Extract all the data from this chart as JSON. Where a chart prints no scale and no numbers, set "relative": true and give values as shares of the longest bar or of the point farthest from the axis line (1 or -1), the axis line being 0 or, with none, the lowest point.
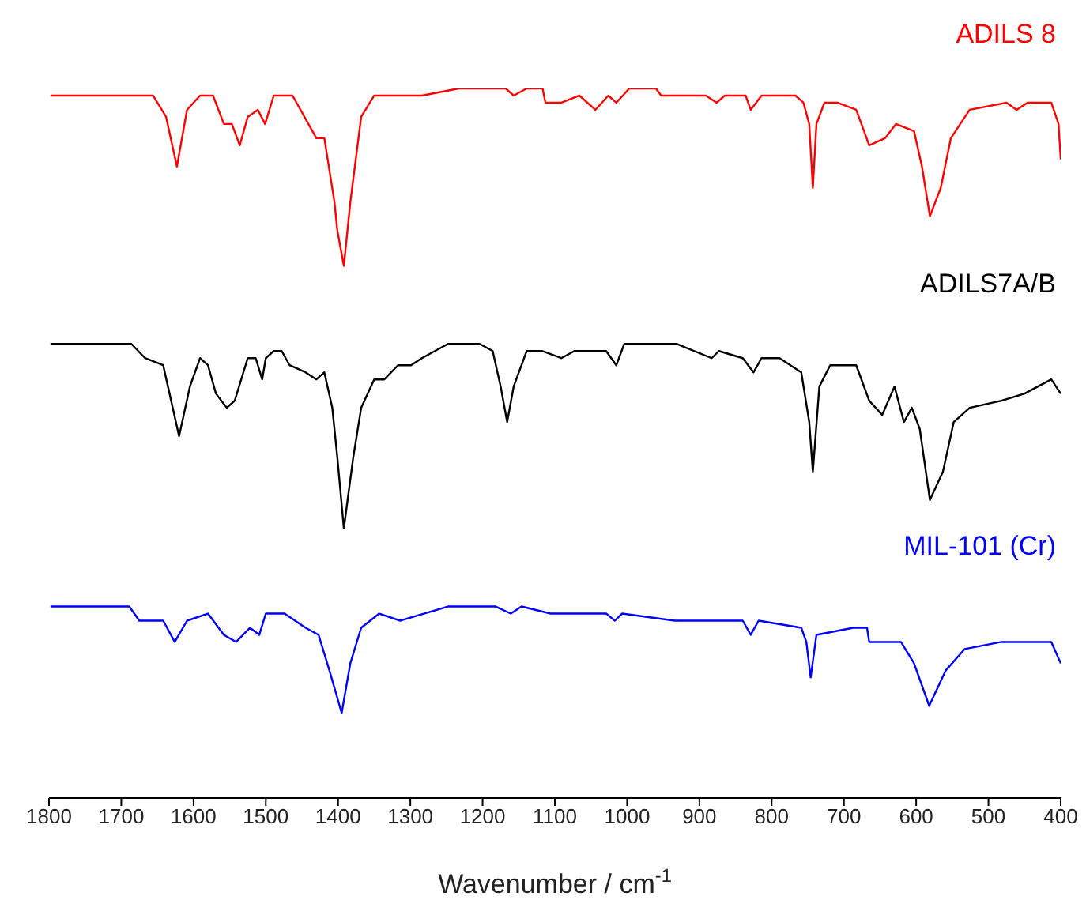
{
  "chart_data": {
    "type": "line",
    "relative": true,
    "xlim": [
      1800,
      400
    ],
    "xticks": [
      1800,
      1700,
      1600,
      1500,
      1400,
      1300,
      1200,
      1100,
      1000,
      900,
      800,
      700,
      600,
      500,
      400
    ],
    "xlabel": "Wavenumber / cm$^{-1}$",
    "marker": "none",
    "series": [
      {
        "name": "ADILS 8",
        "color": "#ff0000",
        "x": [
          1798,
          1656,
          1638,
          1623,
          1609,
          1591,
          1573,
          1558,
          1547,
          1536,
          1525,
          1511,
          1501,
          1489,
          1463,
          1441,
          1430,
          1419,
          1405,
          1401,
          1392,
          1383,
          1368,
          1350,
          1314,
          1284,
          1233,
          1168,
          1157,
          1139,
          1117,
          1113,
          1091,
          1066,
          1044,
          1026,
          1015,
          997,
          960,
          953,
          942,
          912,
          891,
          876,
          865,
          836,
          829,
          814,
          767,
          756,
          748,
          743,
          738,
          727,
          709,
          683,
          665,
          643,
          628,
          603,
          592,
          581,
          566,
          552,
          526,
          475,
          461,
          446,
          413,
          403,
          400
        ],
        "values": [
          0.99,
          0.99,
          0.96,
          0.89,
          0.97,
          0.99,
          0.99,
          0.95,
          0.95,
          0.92,
          0.96,
          0.97,
          0.95,
          0.99,
          0.99,
          0.95,
          0.93,
          0.93,
          0.84,
          0.8,
          0.75,
          0.84,
          0.96,
          0.99,
          0.99,
          0.99,
          1.0,
          1.0,
          0.99,
          1.0,
          1.0,
          0.98,
          0.98,
          0.99,
          0.97,
          0.99,
          0.98,
          1.0,
          1.0,
          0.99,
          0.99,
          0.99,
          0.99,
          0.98,
          0.99,
          0.99,
          0.97,
          0.99,
          0.99,
          0.98,
          0.95,
          0.86,
          0.95,
          0.98,
          0.98,
          0.97,
          0.92,
          0.93,
          0.95,
          0.94,
          0.89,
          0.82,
          0.86,
          0.93,
          0.97,
          0.98,
          0.97,
          0.98,
          0.98,
          0.95,
          0.9
        ]
      },
      {
        "name": "ADILS7A/B",
        "color": "#000000",
        "x": [
          1798,
          1686,
          1667,
          1642,
          1631,
          1620,
          1605,
          1591,
          1580,
          1569,
          1554,
          1543,
          1525,
          1514,
          1505,
          1500,
          1489,
          1478,
          1467,
          1445,
          1430,
          1419,
          1408,
          1401,
          1392,
          1379,
          1368,
          1350,
          1336,
          1317,
          1299,
          1284,
          1248,
          1204,
          1186,
          1175,
          1166,
          1157,
          1139,
          1117,
          1091,
          1073,
          1029,
          1015,
          1004,
          978,
          931,
          883,
          873,
          840,
          825,
          814,
          789,
          759,
          748,
          743,
          734,
          719,
          683,
          665,
          647,
          630,
          617,
          606,
          595,
          581,
          563,
          548,
          526,
          482,
          450,
          413,
          400
        ],
        "values": [
          0.64,
          0.64,
          0.62,
          0.61,
          0.56,
          0.51,
          0.58,
          0.62,
          0.61,
          0.57,
          0.55,
          0.56,
          0.62,
          0.62,
          0.59,
          0.62,
          0.63,
          0.63,
          0.61,
          0.6,
          0.59,
          0.6,
          0.55,
          0.48,
          0.38,
          0.48,
          0.55,
          0.59,
          0.59,
          0.61,
          0.61,
          0.62,
          0.64,
          0.64,
          0.63,
          0.58,
          0.53,
          0.58,
          0.63,
          0.63,
          0.62,
          0.63,
          0.63,
          0.61,
          0.64,
          0.64,
          0.64,
          0.62,
          0.63,
          0.62,
          0.6,
          0.62,
          0.62,
          0.6,
          0.53,
          0.46,
          0.58,
          0.61,
          0.61,
          0.56,
          0.54,
          0.58,
          0.53,
          0.55,
          0.52,
          0.42,
          0.46,
          0.53,
          0.55,
          0.56,
          0.57,
          0.59,
          0.57
        ]
      },
      {
        "name": "MIL-101 (Cr)",
        "color": "#0000ff",
        "x": [
          1798,
          1689,
          1675,
          1642,
          1626,
          1609,
          1580,
          1558,
          1541,
          1522,
          1509,
          1500,
          1474,
          1445,
          1427,
          1412,
          1395,
          1383,
          1368,
          1343,
          1314,
          1248,
          1182,
          1161,
          1146,
          1106,
          1029,
          1017,
          1007,
          934,
          883,
          840,
          829,
          818,
          759,
          752,
          746,
          738,
          687,
          668,
          665,
          621,
          603,
          582,
          559,
          533,
          482,
          438,
          413,
          400
        ],
        "values": [
          0.27,
          0.27,
          0.25,
          0.25,
          0.22,
          0.25,
          0.26,
          0.23,
          0.22,
          0.24,
          0.23,
          0.26,
          0.26,
          0.24,
          0.23,
          0.18,
          0.12,
          0.19,
          0.24,
          0.26,
          0.25,
          0.27,
          0.27,
          0.26,
          0.27,
          0.26,
          0.26,
          0.25,
          0.26,
          0.25,
          0.25,
          0.25,
          0.23,
          0.25,
          0.24,
          0.22,
          0.17,
          0.23,
          0.24,
          0.24,
          0.22,
          0.22,
          0.19,
          0.13,
          0.18,
          0.21,
          0.22,
          0.22,
          0.22,
          0.19
        ]
      }
    ]
  }
}
